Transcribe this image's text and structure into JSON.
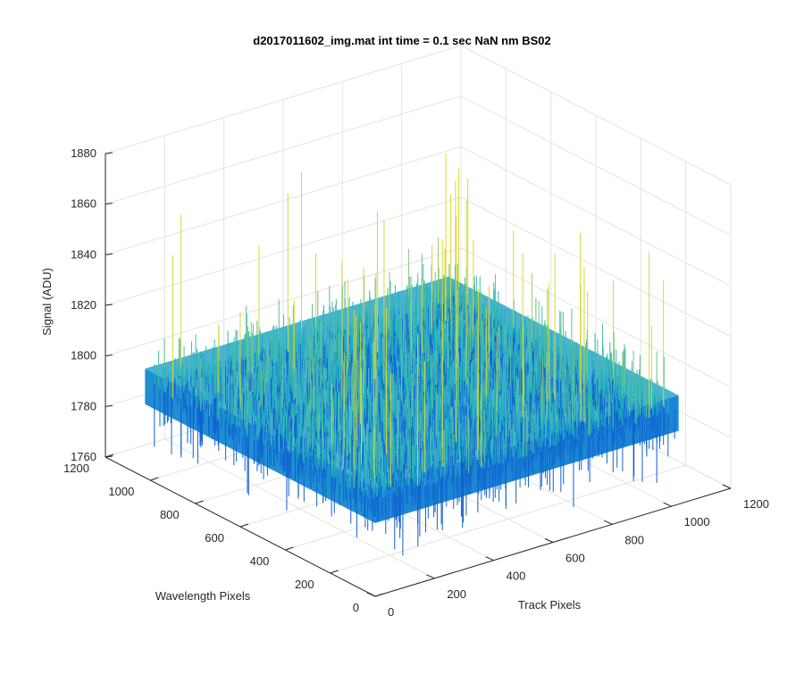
{
  "chart_data": {
    "type": "surface",
    "title": "d2017011602_img.mat int time = 0.1 sec  NaN nm BS02",
    "xlabel": "Track Pixels",
    "ylabel": "Wavelength Pixels",
    "zlabel": "Signal (ADU)",
    "xlim": [
      0,
      1200
    ],
    "ylim": [
      0,
      1200
    ],
    "zlim": [
      1760,
      1880
    ],
    "x_ticks": [
      "0",
      "200",
      "400",
      "600",
      "800",
      "1000",
      "1200"
    ],
    "y_ticks": [
      "0",
      "200",
      "400",
      "600",
      "800",
      "1000",
      "1200"
    ],
    "z_ticks": [
      "1760",
      "1780",
      "1800",
      "1820",
      "1840",
      "1860",
      "1880"
    ],
    "grid": true,
    "colormap": "parula",
    "surface": {
      "x_range": [
        0,
        1024
      ],
      "y_range": [
        0,
        1024
      ],
      "mean_signal": 1797,
      "noise_sd": 7,
      "min_signal": 1766,
      "max_signal": 1868
    },
    "colors": {
      "low": "#0f6fd6",
      "mid": "#1cb3c8",
      "high": "#c9d83a",
      "axis": "#262626",
      "grid": "#e3e3e3"
    }
  }
}
